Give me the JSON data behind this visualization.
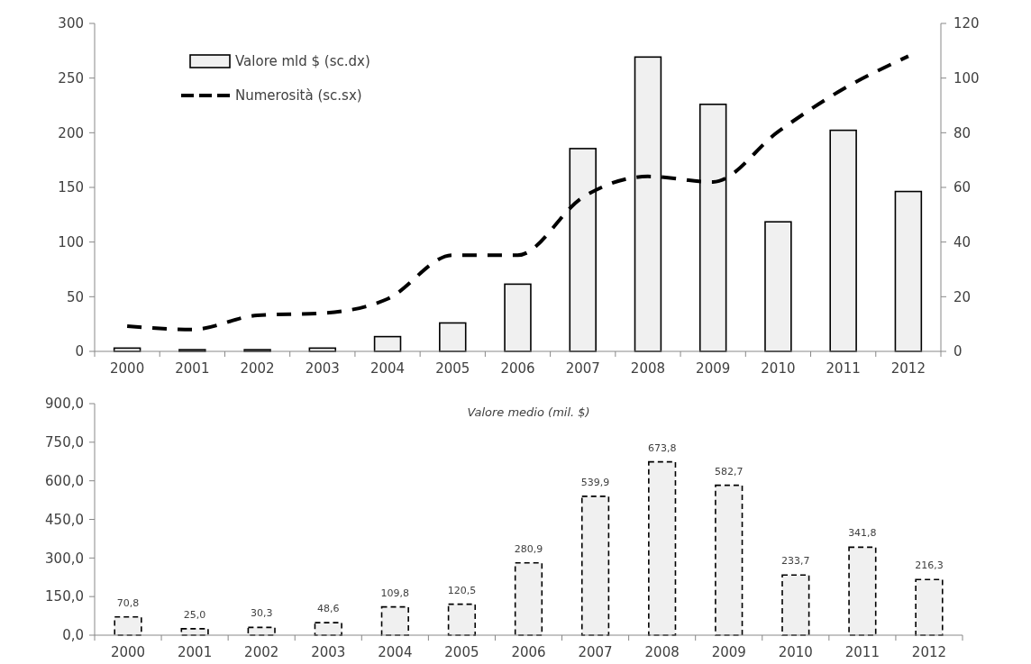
{
  "chart_data": [
    {
      "type": "bar",
      "categories": [
        "2000",
        "2001",
        "2002",
        "2003",
        "2004",
        "2005",
        "2006",
        "2007",
        "2008",
        "2009",
        "2010",
        "2011",
        "2012"
      ],
      "series": [
        {
          "name": "Valore mld $ (sc.dx)",
          "axis": "y2",
          "color": "#f0f0f0",
          "values": [
            1.2,
            0.6,
            0.6,
            1.2,
            5.4,
            10.4,
            24.6,
            74.2,
            107.7,
            90.4,
            47.4,
            80.9,
            58.5
          ]
        },
        {
          "name": "Numerosità (sc.sx)",
          "type": "line",
          "color": "#000000",
          "line_style": "dashed",
          "values": [
            23,
            20,
            33,
            35,
            48,
            88,
            88,
            141,
            160,
            155,
            201,
            240,
            270
          ]
        }
      ],
      "ylim": [
        0,
        300
      ],
      "yticks": [
        0,
        50,
        100,
        150,
        200,
        250,
        300
      ],
      "y2lim": [
        0,
        120
      ],
      "y2ticks": [
        0,
        20,
        40,
        60,
        80,
        100,
        120
      ],
      "legend": "top left",
      "grid": false
    },
    {
      "type": "bar",
      "title": "Valore medio (mil. $)",
      "categories": [
        "2000",
        "2001",
        "2002",
        "2003",
        "2004",
        "2005",
        "2006",
        "2007",
        "2008",
        "2009",
        "2010",
        "2011",
        "2012"
      ],
      "series": [
        {
          "color": "#f0f0f0",
          "line_style": "dashed",
          "values": [
            70.8,
            25.0,
            30.3,
            48.6,
            109.8,
            120.5,
            280.9,
            539.9,
            673.8,
            582.7,
            233.7,
            341.8,
            216.3
          ],
          "value_labels": [
            "70,8",
            "25,0",
            "30,3",
            "48,6",
            "109,8",
            "120,5",
            "280,9",
            "539,9",
            "673,8",
            "582,7",
            "233,7",
            "341,8",
            "216,3"
          ]
        }
      ],
      "ylim": [
        0,
        900
      ],
      "yticks": [
        {
          "value": 0,
          "label": "0,0"
        },
        {
          "value": 150,
          "label": "150,0"
        },
        {
          "value": 300,
          "label": "300,0"
        },
        {
          "value": 450,
          "label": "450,0"
        },
        {
          "value": 600,
          "label": "600,0"
        },
        {
          "value": 750,
          "label": "750,0"
        },
        {
          "value": 900,
          "label": "900,0"
        }
      ],
      "grid": false
    }
  ]
}
